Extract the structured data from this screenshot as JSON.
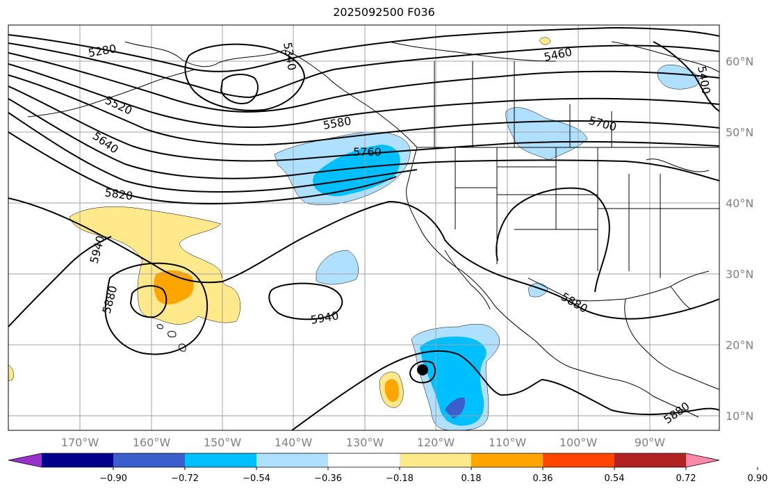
{
  "title": "2025092500 F036",
  "lat_labels": [
    "60°N",
    "50°N",
    "40°N",
    "30°N",
    "20°N",
    "10°N"
  ],
  "lon_labels": [
    "170°W",
    "160°W",
    "150°W",
    "140°W",
    "130°W",
    "120°W",
    "110°W",
    "100°W",
    "90°W"
  ],
  "contour_labels": [
    "5280",
    "5340",
    "5460",
    "5520",
    "5580",
    "5640",
    "5760",
    "5700",
    "5820",
    "5940",
    "5880",
    "5940",
    "5880",
    "5880",
    "5400"
  ],
  "colorbar": {
    "tick_labels": [
      "−0.90",
      "−0.72",
      "−0.54",
      "−0.36",
      "−0.18",
      "0.18",
      "0.36",
      "0.54",
      "0.72",
      "0.90"
    ],
    "colors": [
      "#9932cc",
      "#00008b",
      "#3a5fcd",
      "#00bfff",
      "#b0e0ff",
      "#ffffff",
      "#ffe98a",
      "#ffa500",
      "#ff4500",
      "#b22222",
      "#ff88aa"
    ]
  },
  "colors": {
    "fill_light_blue": "#b0e0ff",
    "fill_blue": "#00bfff",
    "fill_med_blue": "#3a5fcd",
    "fill_yellow": "#ffe98a",
    "fill_orange": "#ffa500",
    "grid": "#a0a0a0"
  }
}
